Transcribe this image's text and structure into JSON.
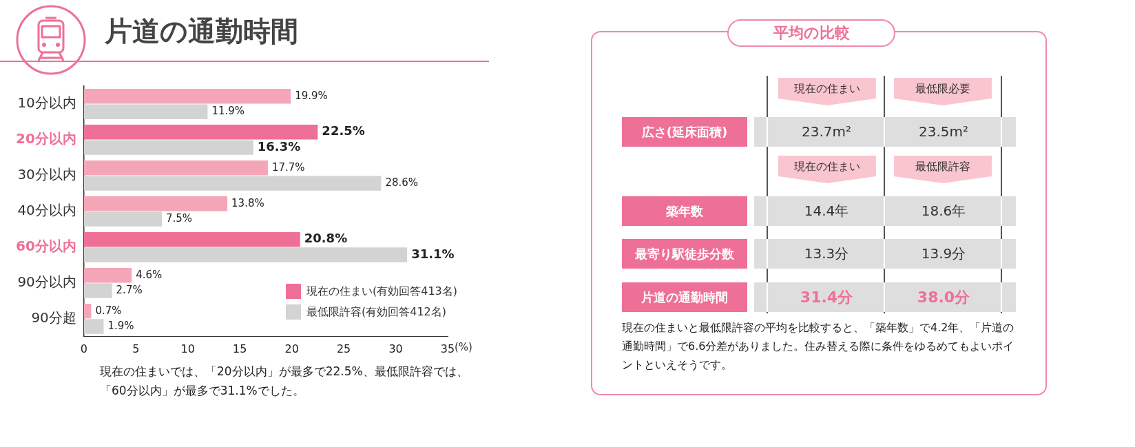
{
  "chart_data": [
    {
      "type": "bar",
      "orientation": "horizontal",
      "title": "片道の通勤時間",
      "xlabel": "(%)",
      "categories": [
        "10分以内",
        "20分以内",
        "30分以内",
        "40分以内",
        "60分以内",
        "90分以内",
        "90分超"
      ],
      "series": [
        {
          "name": "現在の住まい(有効回答413名)",
          "color": "#ee7096",
          "colors": [
            "#f4a6b8",
            "#ee7096",
            "#f4a6b8",
            "#f4a6b8",
            "#ee7096",
            "#f4a6b8",
            "#f4a6b8"
          ],
          "values": [
            19.9,
            22.5,
            17.7,
            13.8,
            20.8,
            4.6,
            0.7
          ],
          "value_labels": [
            "19.9%",
            "22.5%",
            "17.7%",
            "13.8%",
            "20.8%",
            "4.6%",
            "0.7%"
          ]
        },
        {
          "name": "最低限許容(有効回答412名)",
          "color": "#d3d3d3",
          "values": [
            11.9,
            16.3,
            28.6,
            7.5,
            31.1,
            2.7,
            1.9
          ],
          "value_labels": [
            "11.9%",
            "16.3%",
            "28.6%",
            "7.5%",
            "31.1%",
            "2.7%",
            "1.9%"
          ]
        }
      ],
      "xlim": [
        0,
        35
      ],
      "xticks": [
        0,
        5,
        10,
        15,
        20,
        25,
        30,
        35
      ],
      "legend": "bottom right",
      "annotations": [
        "現在の住まいでは、「20分以内」が最多で22.5%、最低限許容では、「60分以内」が最多で31.1%でした。"
      ]
    },
    {
      "type": "other",
      "title": "平均の比較",
      "annotations": [
        "現在の住まい",
        "最低限必要",
        "広さ(延床面積)",
        "23.7m²",
        "23.5m²",
        "現在の住まい",
        "最低限許容",
        "築年数",
        "14.4年",
        "18.6年",
        "最寄り駅徒歩分数",
        "13.3分",
        "13.9分",
        "片道の通勤時間",
        "31.4分",
        "38.0分",
        "現在の住まいと最低限許容の平均を比較すると、「築年数」で4.2年、「片道の通勤時間」で6.6分差がありました。住み替える際に条件をゆるめてもよいポイントといえそうです。"
      ]
    }
  ]
}
